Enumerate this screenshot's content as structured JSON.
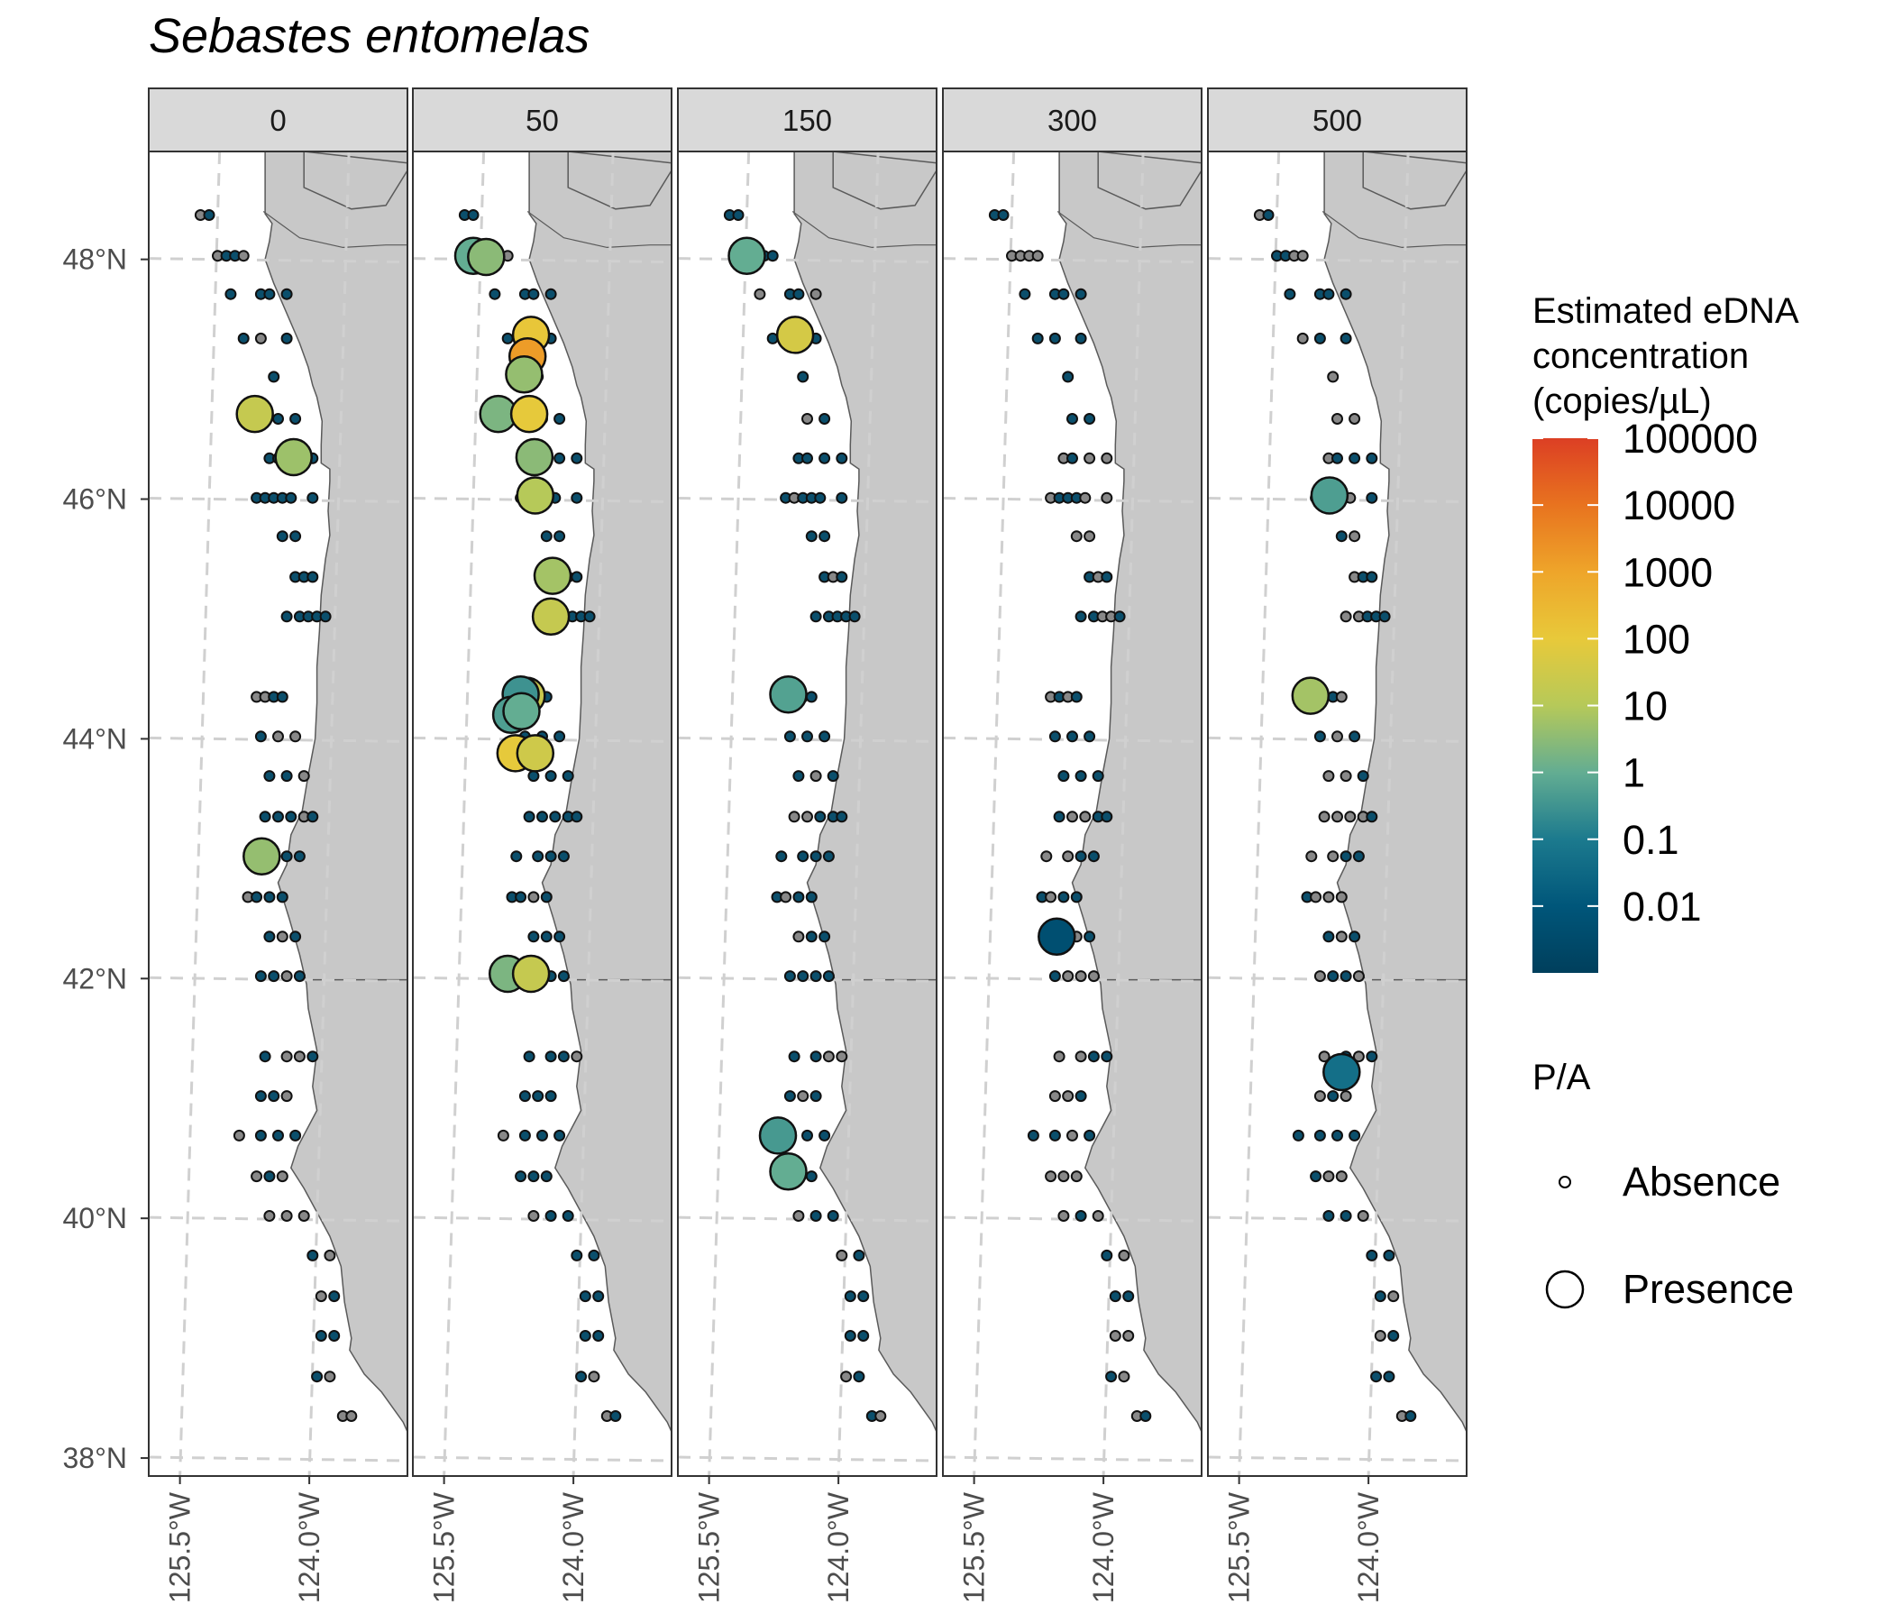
{
  "title": "Sebastes entomelas",
  "chart_data": {
    "type": "scatter",
    "facets": [
      "0",
      "50",
      "150",
      "300",
      "500"
    ],
    "x_ticks": [
      "125.5°W",
      "124.0°W"
    ],
    "y_ticks": [
      "48°N",
      "46°N",
      "44°N",
      "42°N",
      "40°N",
      "38°N"
    ],
    "xlim": [
      -126.05,
      -123.05
    ],
    "ylim": [
      37.85,
      48.9
    ],
    "grid": true,
    "colors": {
      "land": "#c8c8c8",
      "coast": "#5a5a5a",
      "grid": "#d0d0d0",
      "strip": "#d9d9d9",
      "absence_fill": "#888888",
      "presence_small_fill": "#0b4f6c"
    },
    "color_scale": {
      "title": "Estimated eDNA concentration (copies/µL)",
      "labels": [
        "100000",
        "10000",
        "1000",
        "100",
        "10",
        "1",
        "0.1",
        "0.01"
      ],
      "stops": [
        "#003f5c",
        "#00567a",
        "#1c7a8e",
        "#63ad92",
        "#b6c959",
        "#e8c93a",
        "#eea52a",
        "#e8731f",
        "#dc3f24"
      ]
    },
    "size_legend": {
      "title": "P/A",
      "entries": [
        "Absence",
        "Presence"
      ]
    },
    "grid_stations": {
      "lats": [
        48.37,
        48.03,
        47.71,
        47.34,
        47.02,
        46.67,
        46.34,
        46.01,
        45.69,
        45.35,
        45.02,
        44.68,
        44.35,
        44.02,
        43.69,
        43.35,
        43.02,
        42.68,
        42.35,
        42.02,
        41.69,
        41.35,
        41.02,
        40.69,
        40.35,
        40.02,
        39.69,
        39.35,
        39.02,
        38.68,
        38.35
      ],
      "cols": [
        [
          -125.45,
          -125.35
        ],
        [
          -125.25,
          -125.15,
          -125.05,
          -124.95
        ],
        [
          -125.1,
          -124.75,
          -124.65,
          -124.45
        ],
        [
          -124.95,
          -124.75,
          -124.45
        ],
        [
          -124.6
        ],
        [
          -124.55,
          -124.35
        ],
        [
          -124.65,
          -124.55,
          -124.35,
          -124.15
        ],
        [
          -124.8,
          -124.7,
          -124.6,
          -124.5,
          -124.4,
          -124.15
        ],
        [
          -124.5,
          -124.35
        ],
        [
          -124.35,
          -124.25,
          -124.15
        ],
        [
          -124.45,
          -124.3,
          -124.2,
          -124.1,
          -124.0
        ],
        [],
        [
          -124.8,
          -124.7,
          -124.6,
          -124.5
        ],
        [
          -124.75,
          -124.55,
          -124.35
        ],
        [
          -124.65,
          -124.45,
          -124.25
        ],
        [
          -124.7,
          -124.55,
          -124.4,
          -124.25,
          -124.15
        ],
        [
          -124.85,
          -124.6,
          -124.45,
          -124.3
        ],
        [
          -124.9,
          -124.8,
          -124.65,
          -124.5
        ],
        [
          -124.65,
          -124.5,
          -124.35
        ],
        [
          -124.75,
          -124.6,
          -124.45,
          -124.3
        ],
        [],
        [
          -124.7,
          -124.45,
          -124.3,
          -124.15
        ],
        [
          -124.75,
          -124.6,
          -124.45
        ],
        [
          -125.0,
          -124.75,
          -124.55,
          -124.35
        ],
        [
          -124.8,
          -124.65,
          -124.5
        ],
        [
          -124.65,
          -124.45,
          -124.25
        ],
        [
          -124.15,
          -123.95
        ],
        [
          -124.05,
          -123.9
        ],
        [
          -124.05,
          -123.9
        ],
        [
          -124.1,
          -123.95
        ],
        [
          -123.8,
          -123.7
        ]
      ],
      "mask": {
        "0": [
          [
            0,
            1
          ],
          [
            0,
            1,
            1,
            0
          ],
          [
            1,
            1,
            1,
            1
          ],
          [
            1,
            0,
            1
          ],
          [
            1
          ],
          [
            1,
            1
          ],
          [
            1,
            1,
            1,
            1
          ],
          [
            1,
            1,
            1,
            1,
            1,
            1
          ],
          [
            1,
            1
          ],
          [
            1,
            1,
            1
          ],
          [
            1,
            1,
            1,
            1,
            1
          ],
          [],
          [
            0,
            0,
            1,
            1
          ],
          [
            1,
            0,
            0
          ],
          [
            1,
            1,
            0
          ],
          [
            1,
            1,
            1,
            0,
            1
          ],
          [
            0,
            1,
            1,
            1
          ],
          [
            0,
            1,
            1,
            1
          ],
          [
            1,
            0,
            1
          ],
          [
            1,
            1,
            0,
            1
          ],
          [],
          [
            1,
            0,
            0,
            1
          ],
          [
            1,
            1,
            0
          ],
          [
            0,
            1,
            1,
            1
          ],
          [
            0,
            1,
            0
          ],
          [
            0,
            0,
            0
          ],
          [
            1,
            0
          ],
          [
            0,
            1
          ],
          [
            1,
            1
          ],
          [
            1,
            0
          ],
          [
            0,
            0
          ]
        ],
        "50": [
          [
            1,
            1
          ],
          [
            0,
            0,
            0,
            0
          ],
          [
            1,
            1,
            1,
            1
          ],
          [
            1,
            1,
            1
          ],
          [
            1
          ],
          [
            1,
            1
          ],
          [
            1,
            1,
            1,
            1
          ],
          [
            1,
            0,
            1,
            1,
            1,
            1
          ],
          [
            1,
            1
          ],
          [
            1,
            0,
            1
          ],
          [
            1,
            1,
            1,
            1,
            1
          ],
          [],
          [
            1,
            1,
            1,
            1
          ],
          [
            1,
            1,
            1
          ],
          [
            1,
            1,
            1
          ],
          [
            1,
            1,
            1,
            1,
            1
          ],
          [
            1,
            1,
            1,
            1
          ],
          [
            1,
            1,
            0,
            1
          ],
          [
            1,
            1,
            1
          ],
          [
            1,
            1,
            1,
            1
          ],
          [],
          [
            1,
            1,
            1,
            0
          ],
          [
            1,
            1,
            1
          ],
          [
            0,
            1,
            1,
            1
          ],
          [
            1,
            1,
            1
          ],
          [
            0,
            1,
            1
          ],
          [
            1,
            1
          ],
          [
            1,
            1
          ],
          [
            1,
            1
          ],
          [
            1,
            0
          ],
          [
            0,
            1
          ]
        ],
        "150": [
          [
            1,
            1
          ],
          [
            1,
            1,
            1,
            1
          ],
          [
            0,
            1,
            1,
            0
          ],
          [
            1,
            0,
            1
          ],
          [
            1
          ],
          [
            0,
            1
          ],
          [
            1,
            1,
            1,
            1
          ],
          [
            1,
            0,
            1,
            1,
            1,
            1
          ],
          [
            1,
            1
          ],
          [
            1,
            0,
            1
          ],
          [
            1,
            1,
            1,
            1,
            1
          ],
          [],
          [
            1,
            1,
            0,
            1
          ],
          [
            1,
            1,
            1
          ],
          [
            1,
            0,
            1
          ],
          [
            0,
            0,
            1,
            1,
            1
          ],
          [
            1,
            1,
            1,
            1
          ],
          [
            1,
            0,
            1,
            1
          ],
          [
            0,
            1,
            1
          ],
          [
            1,
            1,
            1,
            1
          ],
          [],
          [
            1,
            1,
            0,
            0
          ],
          [
            1,
            0,
            1
          ],
          [
            1,
            0,
            1,
            1
          ],
          [
            0,
            1,
            1
          ],
          [
            0,
            1,
            1
          ],
          [
            0,
            1
          ],
          [
            1,
            1
          ],
          [
            1,
            1
          ],
          [
            0,
            1
          ],
          [
            1,
            0
          ]
        ],
        "300": [
          [
            1,
            1
          ],
          [
            0,
            0,
            0,
            0
          ],
          [
            1,
            1,
            1,
            1
          ],
          [
            1,
            1,
            1
          ],
          [
            1
          ],
          [
            1,
            1
          ],
          [
            0,
            1,
            0,
            0
          ],
          [
            0,
            1,
            1,
            1,
            0,
            0
          ],
          [
            0,
            0
          ],
          [
            1,
            0,
            1
          ],
          [
            1,
            1,
            0,
            0,
            1
          ],
          [],
          [
            0,
            1,
            0,
            1
          ],
          [
            1,
            1,
            1
          ],
          [
            1,
            1,
            1
          ],
          [
            1,
            0,
            0,
            1,
            1
          ],
          [
            0,
            0,
            1,
            1
          ],
          [
            1,
            0,
            1,
            1
          ],
          [
            0,
            0,
            1
          ],
          [
            1,
            0,
            0,
            0
          ],
          [],
          [
            0,
            0,
            1,
            1
          ],
          [
            0,
            0,
            1
          ],
          [
            1,
            1,
            0,
            1
          ],
          [
            0,
            0,
            0
          ],
          [
            0,
            1,
            0
          ],
          [
            1,
            0
          ],
          [
            1,
            1
          ],
          [
            0,
            0
          ],
          [
            1,
            0
          ],
          [
            0,
            1
          ]
        ],
        "500": [
          [
            0,
            1
          ],
          [
            1,
            1,
            0,
            0
          ],
          [
            1,
            1,
            1,
            1
          ],
          [
            0,
            1,
            1
          ],
          [
            0,
            1
          ],
          [
            0,
            0
          ],
          [
            0,
            1,
            1,
            1
          ],
          [
            1,
            1,
            1,
            1,
            0,
            1
          ],
          [
            1,
            0
          ],
          [
            0,
            1,
            1
          ],
          [
            0,
            0,
            1,
            1,
            1
          ],
          [],
          [
            1,
            1,
            1,
            0
          ],
          [
            1,
            0,
            1
          ],
          [
            0,
            0,
            1
          ],
          [
            0,
            0,
            0,
            0,
            1
          ],
          [
            0,
            0,
            1,
            1
          ],
          [
            1,
            0,
            0,
            0
          ],
          [
            1,
            0,
            1
          ],
          [
            0,
            1,
            1,
            0
          ],
          [],
          [
            0,
            1,
            0,
            1
          ],
          [
            0,
            1,
            0
          ],
          [
            1,
            1,
            1,
            1
          ],
          [
            1,
            0,
            0
          ],
          [
            1,
            1,
            0
          ],
          [
            1,
            1
          ],
          [
            1,
            0
          ],
          [
            0,
            1
          ],
          [
            1,
            1
          ],
          [
            0,
            1
          ]
        ]
      }
    },
    "presence": {
      "0": [
        {
          "lon": -124.82,
          "lat": 46.71,
          "value": 20
        },
        {
          "lon": -124.37,
          "lat": 46.35,
          "value": 5
        },
        {
          "lon": -124.74,
          "lat": 43.02,
          "value": 4
        }
      ],
      "50": [
        {
          "lon": -125.35,
          "lat": 48.03,
          "value": 1
        },
        {
          "lon": -125.2,
          "lat": 48.02,
          "value": 3
        },
        {
          "lon": -124.68,
          "lat": 47.37,
          "value": 120
        },
        {
          "lon": -124.72,
          "lat": 47.19,
          "value": 1500
        },
        {
          "lon": -124.76,
          "lat": 47.04,
          "value": 4
        },
        {
          "lon": -125.06,
          "lat": 46.71,
          "value": 2
        },
        {
          "lon": -124.7,
          "lat": 46.71,
          "value": 90
        },
        {
          "lon": -124.64,
          "lat": 46.35,
          "value": 3
        },
        {
          "lon": -124.63,
          "lat": 46.03,
          "value": 10
        },
        {
          "lon": -124.43,
          "lat": 45.36,
          "value": 6
        },
        {
          "lon": -124.45,
          "lat": 45.02,
          "value": 20
        },
        {
          "lon": -124.73,
          "lat": 44.36,
          "value": 25
        },
        {
          "lon": -124.8,
          "lat": 44.37,
          "value": 0.3
        },
        {
          "lon": -124.91,
          "lat": 44.2,
          "value": 0.5
        },
        {
          "lon": -124.79,
          "lat": 44.23,
          "value": 1
        },
        {
          "lon": -124.86,
          "lat": 43.88,
          "value": 90
        },
        {
          "lon": -124.63,
          "lat": 43.88,
          "value": 30
        },
        {
          "lon": -124.95,
          "lat": 42.04,
          "value": 2
        },
        {
          "lon": -124.68,
          "lat": 42.04,
          "value": 20
        }
      ],
      "150": [
        {
          "lon": -125.25,
          "lat": 48.03,
          "value": 1
        },
        {
          "lon": -124.69,
          "lat": 47.37,
          "value": 40
        },
        {
          "lon": -124.77,
          "lat": 44.37,
          "value": 0.6
        },
        {
          "lon": -124.89,
          "lat": 40.69,
          "value": 0.4
        },
        {
          "lon": -124.77,
          "lat": 40.39,
          "value": 1
        }
      ],
      "300": [
        {
          "lon": -124.73,
          "lat": 42.35,
          "value": 0.005
        }
      ],
      "500": [
        {
          "lon": -124.64,
          "lat": 46.03,
          "value": 0.5
        },
        {
          "lon": -124.86,
          "lat": 44.36,
          "value": 6
        },
        {
          "lon": -124.5,
          "lat": 41.22,
          "value": 0.05
        }
      ]
    }
  }
}
